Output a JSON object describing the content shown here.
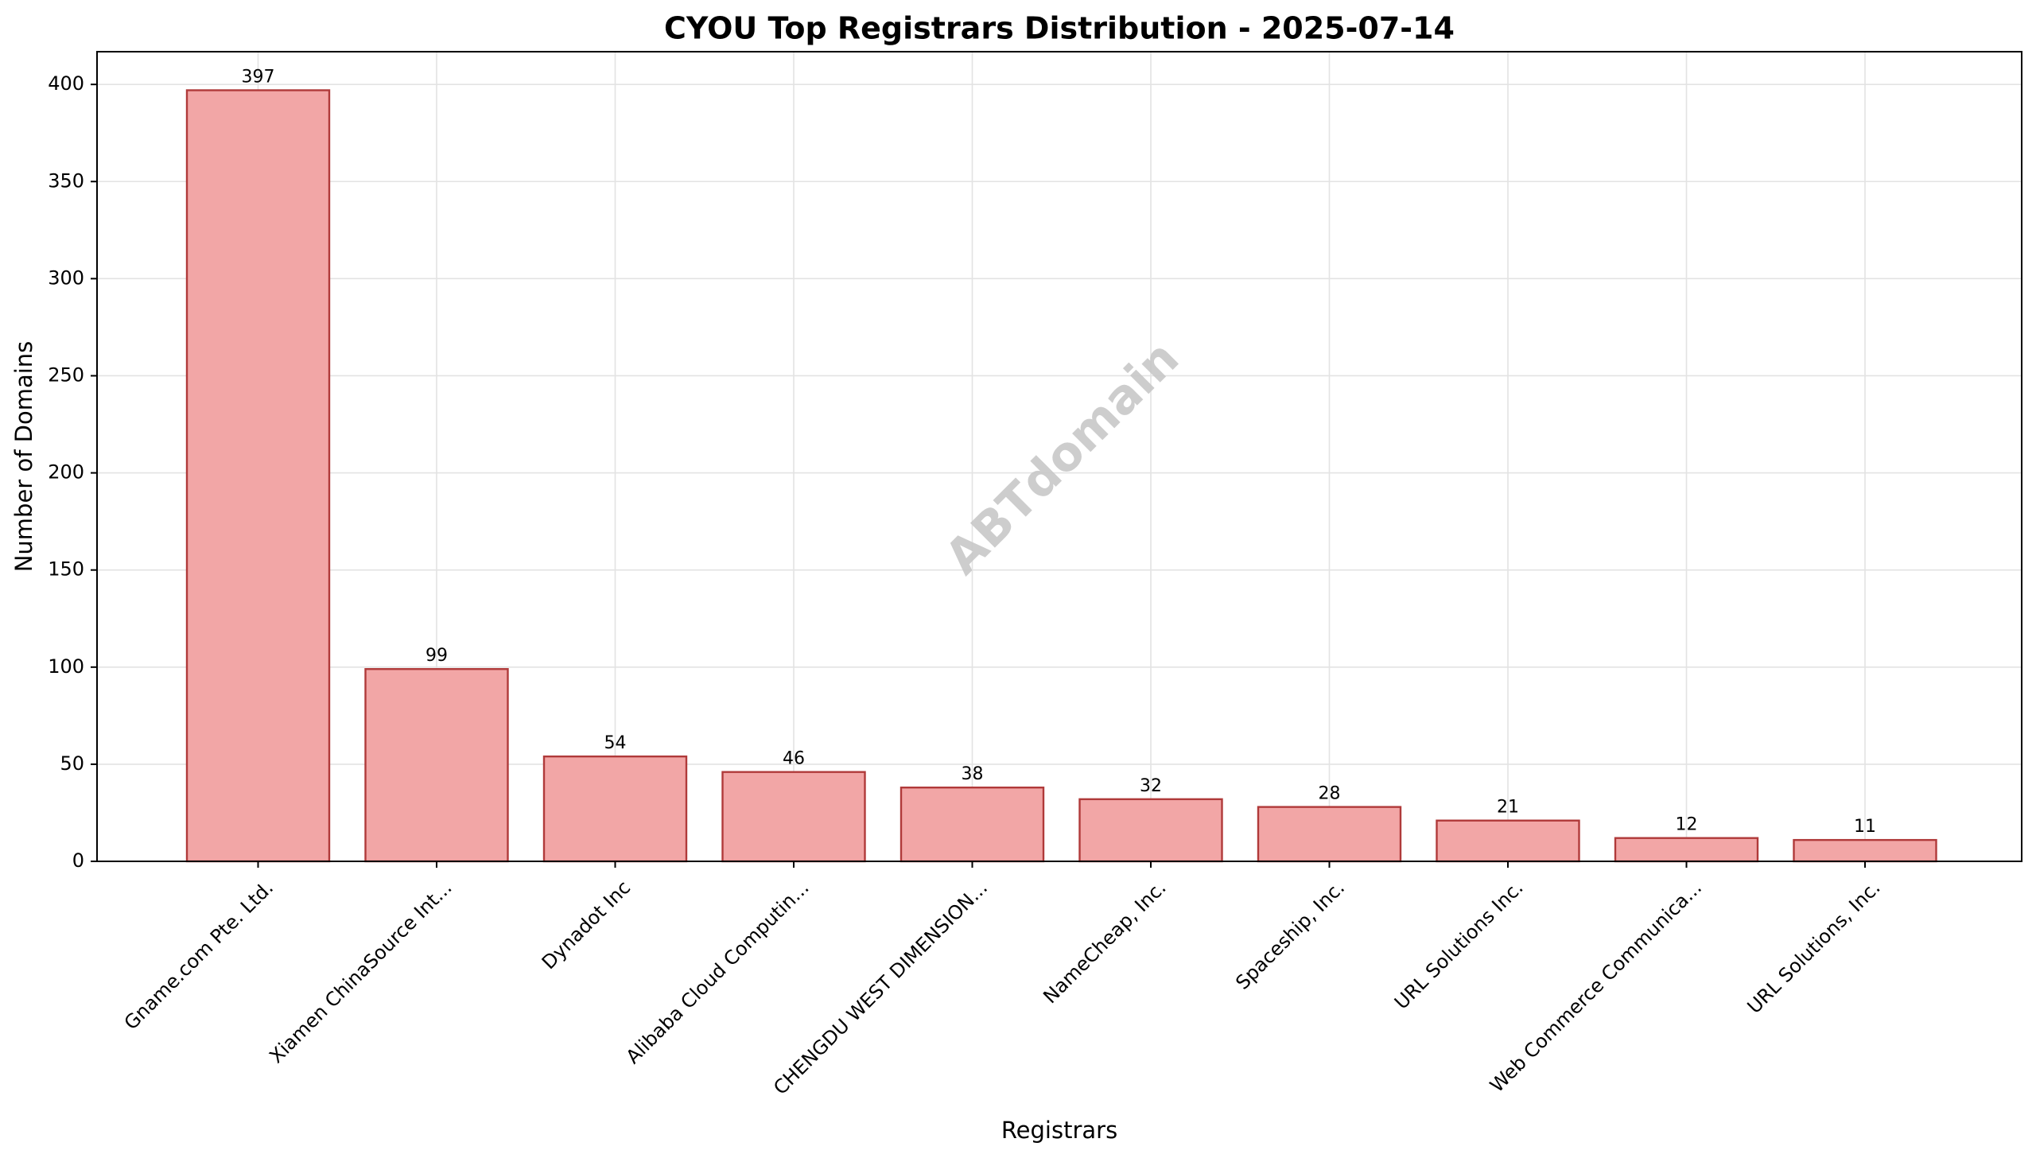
{
  "chart_data": {
    "type": "bar",
    "title": "CYOU Top Registrars Distribution - 2025-07-14",
    "xlabel": "Registrars",
    "ylabel": "Number of Domains",
    "categories": [
      "Gname.com Pte. Ltd.",
      "Xiamen ChinaSource Int...",
      "Dynadot Inc",
      "Alibaba Cloud Computin...",
      "CHENGDU WEST DIMENSION...",
      "NameCheap, Inc.",
      "Spaceship, Inc.",
      "URL Solutions Inc.",
      "Web Commerce Communica...",
      "URL Solutions, Inc."
    ],
    "values": [
      397,
      99,
      54,
      46,
      38,
      32,
      28,
      21,
      12,
      11
    ],
    "ylim": [
      0,
      416.85
    ],
    "yticks": [
      0,
      50,
      100,
      150,
      200,
      250,
      300,
      350,
      400
    ],
    "grid": true,
    "bar_fill": "#f2a6a6",
    "bar_edge": "#b03a3a",
    "watermark": "ABTdomain",
    "watermark_color": "#c8c8c8"
  }
}
